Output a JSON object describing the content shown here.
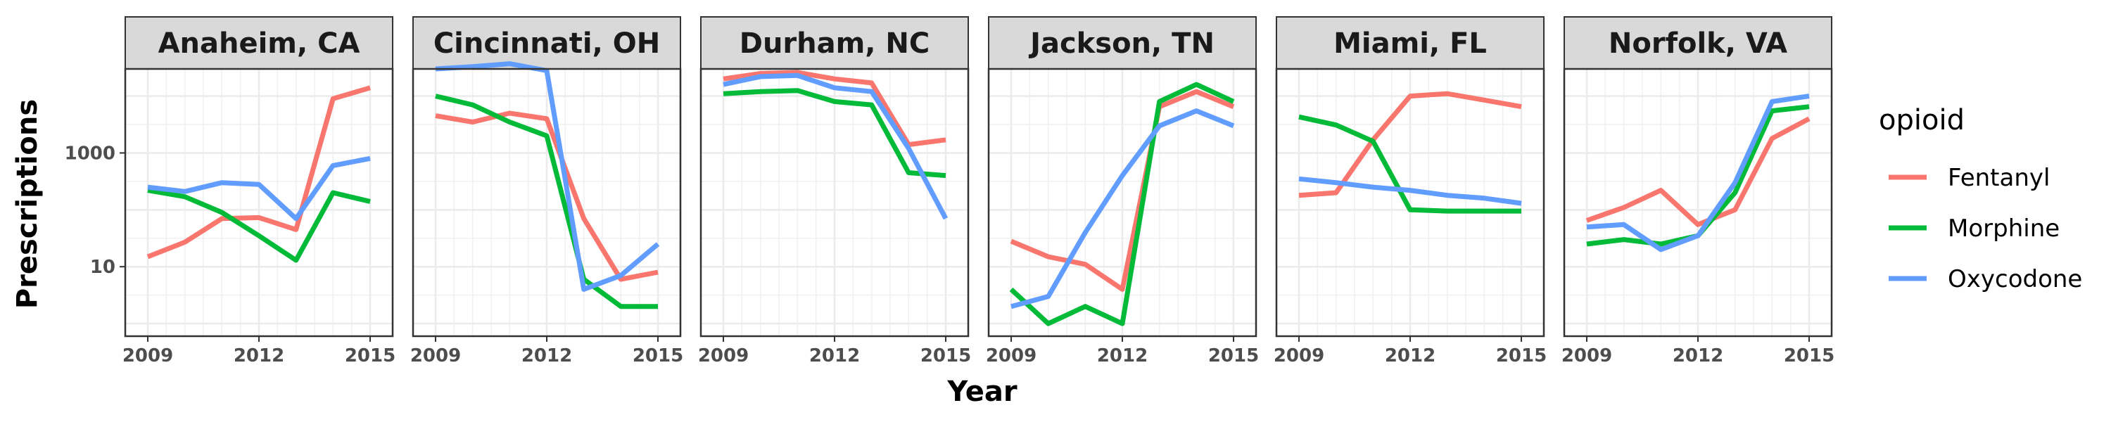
{
  "chart_data": {
    "type": "line",
    "xlabel": "Year",
    "ylabel": "Prescriptions",
    "y_scale": "log10",
    "xlim": [
      2009,
      2015
    ],
    "ylim": [
      0.6,
      30000
    ],
    "x_ticks": [
      2009,
      2012,
      2015
    ],
    "y_ticks": [
      10,
      1000
    ],
    "x_tick_labels": [
      "2009",
      "2012",
      "2015"
    ],
    "y_tick_labels": [
      "10",
      "1000"
    ],
    "grid": true,
    "legend": {
      "title": "opioid",
      "position": "right",
      "items": [
        {
          "name": "Fentanyl",
          "color": "#F8766D"
        },
        {
          "name": "Morphine",
          "color": "#00BA38"
        },
        {
          "name": "Oxycodone",
          "color": "#619CFF"
        }
      ]
    },
    "x": [
      2009,
      2010,
      2011,
      2012,
      2013,
      2014,
      2015
    ],
    "facets": [
      {
        "title": "Anaheim, CA",
        "series": [
          {
            "name": "Fentanyl",
            "values": [
              15,
              27,
              70,
              73,
              45,
              9000,
              14000
            ]
          },
          {
            "name": "Morphine",
            "values": [
              220,
              170,
              90,
              35,
              13,
              200,
              140
            ]
          },
          {
            "name": "Oxycodone",
            "values": [
              250,
              210,
              300,
              280,
              70,
              600,
              800
            ]
          }
        ]
      },
      {
        "title": "Cincinnati, OH",
        "series": [
          {
            "name": "Fentanyl",
            "values": [
              4500,
              3500,
              5000,
              4000,
              70,
              6,
              8
            ]
          },
          {
            "name": "Morphine",
            "values": [
              10000,
              7000,
              3500,
              2000,
              6,
              2,
              2
            ]
          },
          {
            "name": "Oxycodone",
            "values": [
              30000,
              33000,
              37000,
              28000,
              4,
              7,
              25
            ]
          }
        ]
      },
      {
        "title": "Durham, NC",
        "series": [
          {
            "name": "Fentanyl",
            "values": [
              20000,
              25000,
              26000,
              20000,
              17000,
              1400,
              1700
            ]
          },
          {
            "name": "Morphine",
            "values": [
              11000,
              12000,
              12500,
              8000,
              7000,
              450,
              400
            ]
          },
          {
            "name": "Oxycodone",
            "values": [
              16000,
              22000,
              23000,
              14000,
              12000,
              1200,
              70
            ]
          }
        ]
      },
      {
        "title": "Jackson, TN",
        "series": [
          {
            "name": "Fentanyl",
            "values": [
              28,
              15,
              11,
              4,
              6500,
              12000,
              6500
            ]
          },
          {
            "name": "Morphine",
            "values": [
              4,
              1,
              2,
              1,
              8000,
              16000,
              8000
            ]
          },
          {
            "name": "Oxycodone",
            "values": [
              2,
              3,
              40,
              400,
              3000,
              5500,
              3000
            ]
          }
        ]
      },
      {
        "title": "Miami, FL",
        "series": [
          {
            "name": "Fentanyl",
            "values": [
              180,
              200,
              1700,
              10000,
              11000,
              8500,
              6500
            ]
          },
          {
            "name": "Morphine",
            "values": [
              4300,
              3100,
              1600,
              100,
              95,
              95,
              95
            ]
          },
          {
            "name": "Oxycodone",
            "values": [
              350,
              300,
              250,
              220,
              180,
              160,
              130
            ]
          }
        ]
      },
      {
        "title": "Norfolk, VA",
        "series": [
          {
            "name": "Fentanyl",
            "values": [
              65,
              110,
              220,
              55,
              100,
              1800,
              4000
            ]
          },
          {
            "name": "Morphine",
            "values": [
              25,
              30,
              25,
              35,
              200,
              5500,
              6500
            ]
          },
          {
            "name": "Oxycodone",
            "values": [
              50,
              55,
              20,
              35,
              300,
              8000,
              10000
            ]
          }
        ]
      }
    ]
  }
}
